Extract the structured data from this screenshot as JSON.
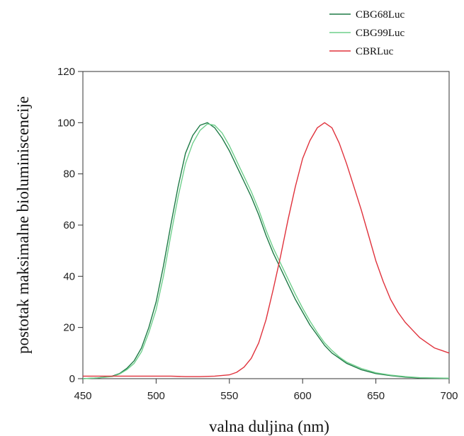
{
  "chart_data": {
    "type": "line",
    "title": "",
    "xlabel": "valna duljina (nm)",
    "ylabel": "postotak maksimalne bioluminiscencije",
    "xlim": [
      450,
      700
    ],
    "ylim": [
      0,
      120
    ],
    "xticks": [
      450,
      500,
      550,
      600,
      650,
      700
    ],
    "yticks": [
      0,
      20,
      40,
      60,
      80,
      100,
      120
    ],
    "grid": false,
    "legend_position": "top-right, outside plot",
    "series": [
      {
        "name": "CBG68Luc",
        "color": "#1e7a46",
        "x": [
          450,
          460,
          470,
          475,
          480,
          485,
          490,
          495,
          500,
          505,
          510,
          515,
          520,
          525,
          530,
          535,
          540,
          545,
          550,
          555,
          560,
          565,
          570,
          575,
          580,
          585,
          590,
          595,
          600,
          605,
          610,
          615,
          620,
          625,
          630,
          640,
          650,
          660,
          670,
          680,
          690,
          700
        ],
        "y": [
          0,
          0.3,
          1,
          2,
          4,
          7,
          12,
          20,
          30,
          44,
          60,
          75,
          88,
          95,
          99,
          100,
          98,
          94,
          89,
          83,
          77,
          71,
          64,
          56,
          49,
          43,
          37,
          31,
          26,
          21,
          17,
          13,
          10,
          8,
          6,
          3.5,
          2,
          1.2,
          0.6,
          0.3,
          0.2,
          0.1
        ]
      },
      {
        "name": "CBG99Luc",
        "color": "#6fcf8c",
        "x": [
          450,
          460,
          470,
          475,
          480,
          485,
          490,
          495,
          500,
          505,
          510,
          515,
          520,
          525,
          530,
          535,
          540,
          545,
          550,
          555,
          560,
          565,
          570,
          575,
          580,
          585,
          590,
          595,
          600,
          605,
          610,
          615,
          620,
          625,
          630,
          640,
          650,
          660,
          670,
          680,
          690,
          700
        ],
        "y": [
          0,
          0.3,
          0.8,
          1.8,
          3.5,
          6,
          10.5,
          18,
          27,
          40,
          56,
          71,
          84,
          92,
          97,
          99.5,
          99,
          96,
          91,
          85,
          79,
          73,
          66,
          58,
          51,
          45,
          39,
          33,
          27.5,
          22.5,
          18,
          14,
          11,
          8.5,
          6.5,
          4,
          2.3,
          1.4,
          0.8,
          0.4,
          0.3,
          0.2
        ]
      },
      {
        "name": "CBRLuc",
        "color": "#e0323c",
        "x": [
          450,
          460,
          470,
          480,
          490,
          500,
          510,
          520,
          530,
          540,
          550,
          555,
          560,
          565,
          570,
          575,
          580,
          585,
          590,
          595,
          600,
          605,
          610,
          615,
          620,
          625,
          630,
          635,
          640,
          645,
          650,
          655,
          660,
          665,
          670,
          675,
          680,
          685,
          690,
          695,
          700
        ],
        "y": [
          1,
          1,
          1,
          1,
          1,
          1,
          1,
          0.8,
          0.8,
          1,
          1.5,
          2.5,
          4.5,
          8,
          14,
          23,
          35,
          48,
          62,
          75,
          86,
          93,
          98,
          100,
          98,
          92,
          84,
          75,
          66,
          56,
          46,
          38,
          31,
          26,
          22,
          19,
          16,
          14,
          12,
          11,
          10
        ]
      }
    ]
  }
}
